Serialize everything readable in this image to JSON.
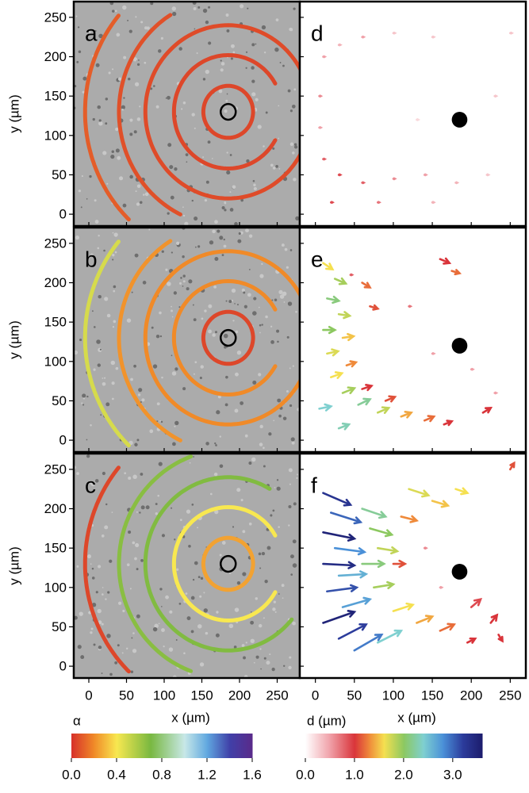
{
  "chart_data": [
    {
      "type": "rings",
      "title": "a",
      "ylabel": "y (µm)",
      "xlim": [
        -20,
        280
      ],
      "ylim": [
        -15,
        270
      ],
      "xticks": [
        0,
        50,
        100,
        150,
        200,
        250
      ],
      "yticks": [
        0,
        50,
        100,
        150,
        200,
        250
      ],
      "center": [
        185,
        130
      ],
      "hole_radius": 10,
      "rings": [
        {
          "radius": 33,
          "start": 0,
          "end": 360,
          "alpha": 0.05
        },
        {
          "radius": 72,
          "start": 30,
          "end": 330,
          "alpha": 0.05
        },
        {
          "radius": 110,
          "start": 22,
          "end": 335,
          "alpha": 0.06
        },
        {
          "radius": 145,
          "start": 122,
          "end": 244,
          "alpha": 0.07
        },
        {
          "radius": 190,
          "start": 140,
          "end": 226,
          "alpha": 0.1
        }
      ]
    },
    {
      "type": "rings",
      "title": "b",
      "ylabel": "y (µm)",
      "xlim": [
        -20,
        280
      ],
      "ylim": [
        -15,
        270
      ],
      "xticks": [
        0,
        50,
        100,
        150,
        200,
        250
      ],
      "yticks": [
        0,
        50,
        100,
        150,
        200,
        250
      ],
      "center": [
        185,
        130
      ],
      "hole_radius": 10,
      "rings": [
        {
          "radius": 33,
          "start": 0,
          "end": 360,
          "alpha": 0.05
        },
        {
          "radius": 72,
          "start": 30,
          "end": 330,
          "alpha": 0.2
        },
        {
          "radius": 110,
          "start": 22,
          "end": 335,
          "alpha": 0.2
        },
        {
          "radius": 145,
          "start": 122,
          "end": 244,
          "alpha": 0.22
        },
        {
          "radius": 190,
          "start": 140,
          "end": 226,
          "alpha": 0.48
        }
      ]
    },
    {
      "type": "rings",
      "title": "c",
      "ylabel": "y (µm)",
      "xlabel": "x (µm)",
      "xlim": [
        -20,
        280
      ],
      "ylim": [
        -15,
        270
      ],
      "xticks": [
        0,
        50,
        100,
        150,
        200,
        250
      ],
      "yticks": [
        0,
        50,
        100,
        150,
        200,
        250
      ],
      "center": [
        185,
        130
      ],
      "hole_radius": 10,
      "rings": [
        {
          "radius": 33,
          "start": 0,
          "end": 360,
          "alpha": 0.25
        },
        {
          "radius": 72,
          "start": 30,
          "end": 330,
          "alpha": 0.4
        },
        {
          "radius": 110,
          "start": 60,
          "end": 320,
          "alpha": 0.68
        },
        {
          "radius": 145,
          "start": 110,
          "end": 250,
          "alpha": 0.66
        },
        {
          "radius": 190,
          "start": 140,
          "end": 226,
          "alpha": 0.05
        }
      ]
    },
    {
      "type": "quiver",
      "title": "d",
      "xlim": [
        -20,
        270
      ],
      "ylim": [
        -15,
        270
      ],
      "xticks": [
        0,
        50,
        100,
        150,
        200,
        250
      ],
      "yticks": [
        0,
        50,
        100,
        150,
        200,
        250
      ],
      "obstacle": [
        185,
        120
      ],
      "obstacle_radius": 10,
      "arrows": [
        [
          10,
          200,
          2,
          0,
          0.5
        ],
        [
          30,
          215,
          2,
          0,
          0.4
        ],
        [
          60,
          225,
          2,
          0,
          0.5
        ],
        [
          100,
          230,
          2,
          0,
          0.3
        ],
        [
          150,
          225,
          2,
          0,
          0.3
        ],
        [
          5,
          150,
          2,
          0,
          0.6
        ],
        [
          5,
          110,
          2,
          0,
          0.5
        ],
        [
          10,
          70,
          2,
          0,
          0.8
        ],
        [
          30,
          50,
          2,
          0,
          0.9
        ],
        [
          60,
          40,
          2,
          0,
          0.8
        ],
        [
          100,
          45,
          2,
          0,
          0.6
        ],
        [
          140,
          50,
          2,
          0,
          0.5
        ],
        [
          180,
          40,
          2,
          0,
          0.4
        ],
        [
          220,
          50,
          2,
          0,
          0.3
        ],
        [
          20,
          15,
          2,
          0,
          0.9
        ],
        [
          80,
          15,
          2,
          0,
          0.7
        ],
        [
          150,
          15,
          2,
          0,
          0.4
        ],
        [
          230,
          150,
          2,
          0,
          0.3
        ],
        [
          250,
          230,
          2,
          0,
          0.3
        ],
        [
          130,
          120,
          2,
          0,
          0.2
        ]
      ]
    },
    {
      "type": "quiver",
      "title": "e",
      "xlim": [
        -20,
        270
      ],
      "ylim": [
        -15,
        270
      ],
      "xticks": [
        0,
        50,
        100,
        150,
        200,
        250
      ],
      "yticks": [
        0,
        50,
        100,
        150,
        200,
        250
      ],
      "obstacle": [
        185,
        120
      ],
      "obstacle_radius": 10,
      "arrows": [
        [
          10,
          225,
          12,
          -8,
          1.6
        ],
        [
          25,
          205,
          14,
          -6,
          1.9
        ],
        [
          15,
          180,
          15,
          -3,
          2.1
        ],
        [
          30,
          160,
          14,
          -2,
          1.8
        ],
        [
          10,
          140,
          15,
          0,
          2.0
        ],
        [
          35,
          130,
          14,
          2,
          1.5
        ],
        [
          15,
          110,
          14,
          3,
          1.7
        ],
        [
          40,
          95,
          12,
          4,
          1.3
        ],
        [
          60,
          200,
          10,
          -6,
          1.2
        ],
        [
          70,
          170,
          10,
          -3,
          1.1
        ],
        [
          160,
          230,
          12,
          -5,
          1.0
        ],
        [
          175,
          215,
          10,
          -3,
          1.2
        ],
        [
          20,
          80,
          14,
          5,
          1.6
        ],
        [
          35,
          60,
          15,
          6,
          1.9
        ],
        [
          55,
          45,
          15,
          7,
          2.2
        ],
        [
          80,
          35,
          14,
          6,
          1.8
        ],
        [
          110,
          30,
          13,
          5,
          1.4
        ],
        [
          140,
          25,
          12,
          5,
          1.2
        ],
        [
          165,
          20,
          10,
          4,
          1.0
        ],
        [
          60,
          65,
          12,
          4,
          1.0
        ],
        [
          90,
          50,
          12,
          5,
          1.1
        ],
        [
          215,
          35,
          10,
          6,
          1.0
        ],
        [
          45,
          210,
          2,
          0,
          0.8
        ],
        [
          120,
          170,
          2,
          0,
          0.7
        ],
        [
          200,
          90,
          2,
          0,
          0.5
        ],
        [
          230,
          60,
          2,
          0,
          0.5
        ],
        [
          150,
          110,
          2,
          0,
          0.5
        ],
        [
          30,
          15,
          13,
          5,
          2.3
        ],
        [
          5,
          40,
          15,
          3,
          2.4
        ]
      ]
    },
    {
      "type": "quiver",
      "title": "f",
      "xlabel": "x (µm)",
      "xlim": [
        -20,
        270
      ],
      "ylim": [
        -15,
        270
      ],
      "xticks": [
        0,
        50,
        100,
        150,
        200,
        250
      ],
      "yticks": [
        0,
        50,
        100,
        150,
        200,
        250
      ],
      "obstacle": [
        185,
        120
      ],
      "obstacle_radius": 10,
      "arrows": [
        [
          10,
          220,
          35,
          -15,
          3.3
        ],
        [
          20,
          195,
          38,
          -12,
          3.0
        ],
        [
          10,
          170,
          40,
          -8,
          3.5
        ],
        [
          25,
          150,
          38,
          -5,
          2.8
        ],
        [
          10,
          130,
          40,
          -2,
          3.4
        ],
        [
          30,
          115,
          35,
          2,
          2.6
        ],
        [
          15,
          95,
          38,
          5,
          3.1
        ],
        [
          35,
          75,
          35,
          10,
          2.7
        ],
        [
          10,
          55,
          40,
          14,
          3.5
        ],
        [
          30,
          35,
          35,
          18,
          3.2
        ],
        [
          50,
          20,
          35,
          20,
          2.9
        ],
        [
          80,
          30,
          30,
          15,
          2.4
        ],
        [
          60,
          200,
          30,
          -10,
          2.2
        ],
        [
          70,
          175,
          28,
          -8,
          2.0
        ],
        [
          80,
          150,
          25,
          -4,
          1.8
        ],
        [
          60,
          130,
          28,
          0,
          2.1
        ],
        [
          75,
          100,
          25,
          4,
          1.9
        ],
        [
          100,
          70,
          25,
          8,
          1.6
        ],
        [
          130,
          55,
          20,
          8,
          1.4
        ],
        [
          160,
          45,
          18,
          8,
          1.2
        ],
        [
          120,
          225,
          25,
          -8,
          1.7
        ],
        [
          150,
          210,
          20,
          -6,
          1.5
        ],
        [
          180,
          225,
          15,
          -5,
          1.6
        ],
        [
          110,
          190,
          20,
          -5,
          1.3
        ],
        [
          100,
          130,
          15,
          0,
          1.1
        ],
        [
          200,
          75,
          12,
          10,
          0.9
        ],
        [
          225,
          55,
          8,
          10,
          1.0
        ],
        [
          235,
          40,
          5,
          -8,
          1.0
        ],
        [
          250,
          250,
          5,
          8,
          1.1
        ],
        [
          195,
          30,
          10,
          5,
          1.0
        ],
        [
          140,
          150,
          2,
          0,
          0.6
        ],
        [
          160,
          100,
          2,
          0,
          0.5
        ]
      ]
    },
    {
      "type": "colorbar",
      "label": "α",
      "xlim": [
        0,
        1.6
      ],
      "xticks": [
        {
          "value": 0,
          "label": "0.0"
        },
        {
          "value": 0.4,
          "label": "0.4"
        },
        {
          "value": 0.8,
          "label": "0.8"
        },
        {
          "value": 1.2,
          "label": "1.2"
        },
        {
          "value": 1.6,
          "label": "1.6"
        }
      ],
      "stops": [
        {
          "value": 0,
          "color": "#d7302a"
        },
        {
          "value": 0.2,
          "color": "#f08a28"
        },
        {
          "value": 0.4,
          "color": "#f8e850"
        },
        {
          "value": 0.7,
          "color": "#78b840"
        },
        {
          "value": 1.0,
          "color": "#c8e8e8"
        },
        {
          "value": 1.2,
          "color": "#60a8e0"
        },
        {
          "value": 1.4,
          "color": "#4040a8"
        },
        {
          "value": 1.6,
          "color": "#5a2a8a"
        }
      ]
    },
    {
      "type": "colorbar",
      "label": "d (µm)",
      "xlim": [
        0,
        3.6
      ],
      "xticks": [
        {
          "value": 0,
          "label": "0.0"
        },
        {
          "value": 1,
          "label": "1.0"
        },
        {
          "value": 2,
          "label": "2.0"
        },
        {
          "value": 3,
          "label": "3.0"
        }
      ],
      "stops": [
        {
          "value": 0,
          "color": "#ffffff"
        },
        {
          "value": 0.5,
          "color": "#f0a0a8"
        },
        {
          "value": 1.0,
          "color": "#d9343a"
        },
        {
          "value": 1.3,
          "color": "#ef8a3a"
        },
        {
          "value": 1.6,
          "color": "#f5e050"
        },
        {
          "value": 2.0,
          "color": "#8cc860"
        },
        {
          "value": 2.4,
          "color": "#7fd0d0"
        },
        {
          "value": 2.8,
          "color": "#4a90d8"
        },
        {
          "value": 3.2,
          "color": "#2c3c9c"
        },
        {
          "value": 3.6,
          "color": "#1c1c6c"
        }
      ]
    }
  ]
}
